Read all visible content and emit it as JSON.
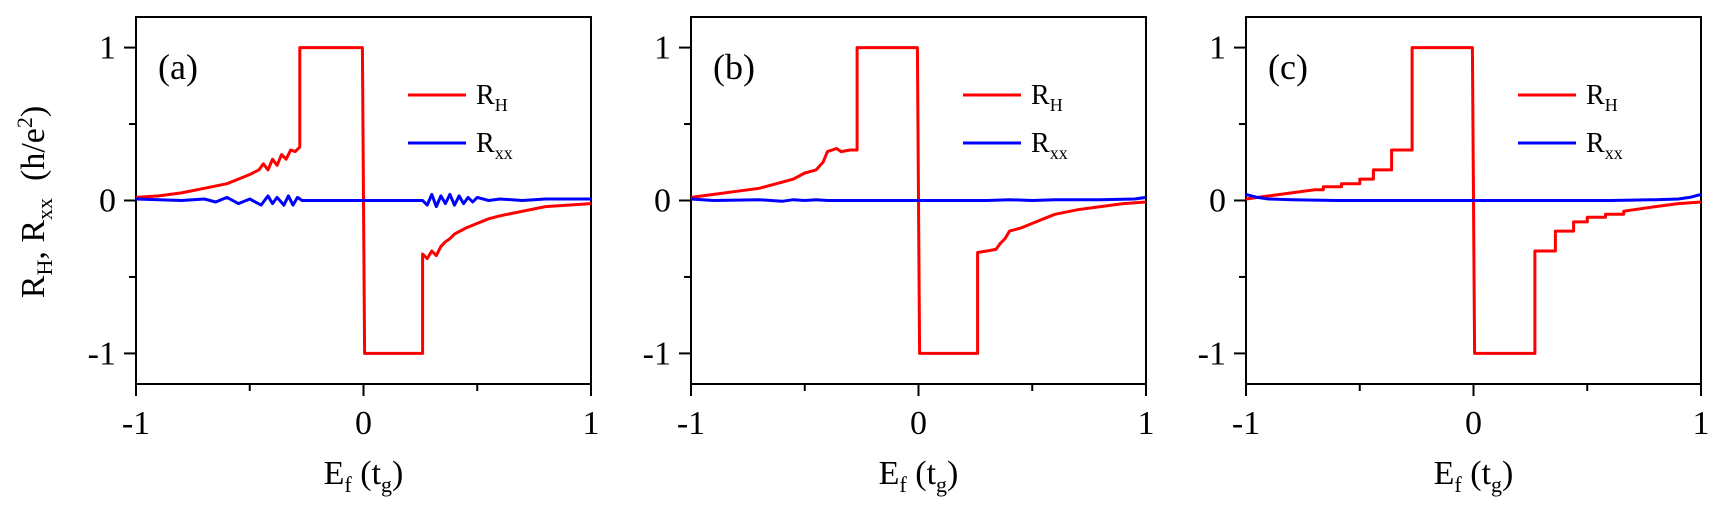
{
  "figure": {
    "ylabel": {
      "main": "R",
      "sub1": "H",
      "sep": ", R",
      "sub2": "xx",
      "unit_open": "  (h/e",
      "unit_sup": "2",
      "unit_close": ")"
    },
    "xlabel": {
      "main": "E",
      "sub1": "f",
      "mid": " (t",
      "sub2": "g",
      "close": ")"
    }
  },
  "chart_data": [
    {
      "type": "line",
      "panel_label": "(a)",
      "xlim": [
        -1,
        1
      ],
      "ylim": [
        -1.2,
        1.2
      ],
      "xticks": [
        -1,
        0,
        1
      ],
      "xtick_labels": [
        "-1",
        "0",
        "1"
      ],
      "yticks": [
        -1,
        0,
        1
      ],
      "ytick_labels": [
        "-1",
        "0",
        "1"
      ],
      "legend": {
        "position": "top-right",
        "entries": [
          {
            "main": "R",
            "sub": "H"
          },
          {
            "main": "R",
            "sub": "xx"
          }
        ]
      },
      "series": [
        {
          "name": "R_H",
          "color": "#ff0000",
          "x": [
            -1,
            -0.9,
            -0.8,
            -0.7,
            -0.6,
            -0.55,
            -0.5,
            -0.46,
            -0.44,
            -0.42,
            -0.4,
            -0.38,
            -0.36,
            -0.34,
            -0.32,
            -0.3,
            -0.28,
            -0.28,
            -0.2,
            -0.1,
            -0.005,
            0.005,
            0.1,
            0.2,
            0.26,
            0.26,
            0.28,
            0.3,
            0.32,
            0.34,
            0.36,
            0.38,
            0.4,
            0.45,
            0.5,
            0.55,
            0.6,
            0.7,
            0.8,
            0.9,
            1
          ],
          "y": [
            0.02,
            0.03,
            0.05,
            0.08,
            0.11,
            0.14,
            0.17,
            0.2,
            0.24,
            0.2,
            0.27,
            0.23,
            0.3,
            0.27,
            0.33,
            0.32,
            0.35,
            1,
            1,
            1,
            1,
            -1,
            -1,
            -1,
            -1,
            -0.35,
            -0.38,
            -0.33,
            -0.36,
            -0.3,
            -0.27,
            -0.25,
            -0.22,
            -0.18,
            -0.15,
            -0.12,
            -0.1,
            -0.07,
            -0.04,
            -0.03,
            -0.02
          ]
        },
        {
          "name": "R_xx",
          "color": "#0000ff",
          "x": [
            -1,
            -0.8,
            -0.7,
            -0.65,
            -0.6,
            -0.55,
            -0.5,
            -0.45,
            -0.42,
            -0.4,
            -0.38,
            -0.35,
            -0.33,
            -0.31,
            -0.29,
            -0.27,
            -0.2,
            0,
            0.2,
            0.26,
            0.28,
            0.3,
            0.32,
            0.34,
            0.36,
            0.38,
            0.4,
            0.42,
            0.44,
            0.46,
            0.48,
            0.5,
            0.55,
            0.6,
            0.7,
            0.8,
            1
          ],
          "y": [
            0.01,
            0.0,
            0.01,
            -0.01,
            0.02,
            -0.02,
            0.01,
            -0.03,
            0.03,
            -0.02,
            0.02,
            -0.03,
            0.03,
            -0.03,
            0.02,
            0.0,
            0.0,
            0.0,
            0.0,
            0.0,
            -0.03,
            0.04,
            -0.04,
            0.03,
            -0.02,
            0.04,
            -0.03,
            0.03,
            -0.02,
            0.02,
            -0.01,
            0.02,
            0.0,
            0.01,
            0.0,
            0.01,
            0.01
          ]
        }
      ]
    },
    {
      "type": "line",
      "panel_label": "(b)",
      "xlim": [
        -1,
        1
      ],
      "ylim": [
        -1.2,
        1.2
      ],
      "xticks": [
        -1,
        0,
        1
      ],
      "xtick_labels": [
        "-1",
        "0",
        "1"
      ],
      "yticks": [
        -1,
        0,
        1
      ],
      "ytick_labels": [
        "-1",
        "0",
        "1"
      ],
      "legend": {
        "position": "top-right",
        "entries": [
          {
            "main": "R",
            "sub": "H"
          },
          {
            "main": "R",
            "sub": "xx"
          }
        ]
      },
      "series": [
        {
          "name": "R_H",
          "color": "#ff0000",
          "x": [
            -1,
            -0.9,
            -0.8,
            -0.7,
            -0.6,
            -0.55,
            -0.5,
            -0.45,
            -0.42,
            -0.4,
            -0.36,
            -0.34,
            -0.3,
            -0.27,
            -0.27,
            -0.2,
            -0.1,
            -0.005,
            0.005,
            0.1,
            0.2,
            0.26,
            0.26,
            0.3,
            0.34,
            0.36,
            0.38,
            0.4,
            0.45,
            0.5,
            0.55,
            0.6,
            0.7,
            0.8,
            0.9,
            1
          ],
          "y": [
            0.02,
            0.04,
            0.06,
            0.08,
            0.12,
            0.14,
            0.18,
            0.2,
            0.25,
            0.32,
            0.34,
            0.32,
            0.33,
            0.33,
            1,
            1,
            1,
            1,
            -1,
            -1,
            -1,
            -1,
            -0.34,
            -0.33,
            -0.32,
            -0.28,
            -0.25,
            -0.2,
            -0.18,
            -0.15,
            -0.12,
            -0.09,
            -0.06,
            -0.04,
            -0.02,
            -0.01
          ]
        },
        {
          "name": "R_xx",
          "color": "#0000ff",
          "x": [
            -1,
            -0.9,
            -0.7,
            -0.6,
            -0.55,
            -0.5,
            -0.45,
            -0.4,
            -0.3,
            0,
            0.3,
            0.4,
            0.5,
            0.6,
            0.8,
            0.95,
            1
          ],
          "y": [
            0.01,
            0.0,
            0.005,
            -0.005,
            0.005,
            0.0,
            0.005,
            0.0,
            0.0,
            0.0,
            0.0,
            0.005,
            0.0,
            0.005,
            0.005,
            0.01,
            0.02
          ]
        }
      ]
    },
    {
      "type": "line",
      "panel_label": "(c)",
      "xlim": [
        -1,
        1
      ],
      "ylim": [
        -1.2,
        1.2
      ],
      "xticks": [
        -1,
        0,
        1
      ],
      "xtick_labels": [
        "-1",
        "0",
        "1"
      ],
      "yticks": [
        -1,
        0,
        1
      ],
      "ytick_labels": [
        "-1",
        "0",
        "1"
      ],
      "legend": {
        "position": "top-right",
        "entries": [
          {
            "main": "R",
            "sub": "H"
          },
          {
            "main": "R",
            "sub": "xx"
          }
        ]
      },
      "series": [
        {
          "name": "R_H",
          "color": "#ff0000",
          "x": [
            -1,
            -0.9,
            -0.8,
            -0.7,
            -0.66,
            -0.66,
            -0.58,
            -0.58,
            -0.5,
            -0.5,
            -0.44,
            -0.44,
            -0.41,
            -0.41,
            -0.36,
            -0.36,
            -0.27,
            -0.27,
            -0.2,
            -0.1,
            -0.005,
            0.005,
            0.1,
            0.2,
            0.27,
            0.27,
            0.36,
            0.36,
            0.41,
            0.41,
            0.44,
            0.44,
            0.5,
            0.5,
            0.58,
            0.58,
            0.66,
            0.66,
            0.8,
            0.9,
            1
          ],
          "y": [
            0.01,
            0.03,
            0.05,
            0.07,
            0.07,
            0.09,
            0.09,
            0.11,
            0.11,
            0.14,
            0.14,
            0.2,
            0.2,
            0.2,
            0.2,
            0.33,
            0.33,
            1,
            1,
            1,
            1,
            -1,
            -1,
            -1,
            -1,
            -0.33,
            -0.33,
            -0.2,
            -0.2,
            -0.2,
            -0.2,
            -0.14,
            -0.14,
            -0.11,
            -0.11,
            -0.09,
            -0.09,
            -0.07,
            -0.04,
            -0.02,
            -0.01
          ]
        },
        {
          "name": "R_xx",
          "color": "#0000ff",
          "x": [
            -1,
            -0.95,
            -0.9,
            -0.8,
            -0.6,
            -0.4,
            0,
            0.4,
            0.6,
            0.8,
            0.9,
            0.95,
            1
          ],
          "y": [
            0.04,
            0.02,
            0.01,
            0.005,
            0.0,
            0.0,
            0.0,
            0.0,
            0.0,
            0.005,
            0.01,
            0.02,
            0.04
          ]
        }
      ]
    }
  ]
}
